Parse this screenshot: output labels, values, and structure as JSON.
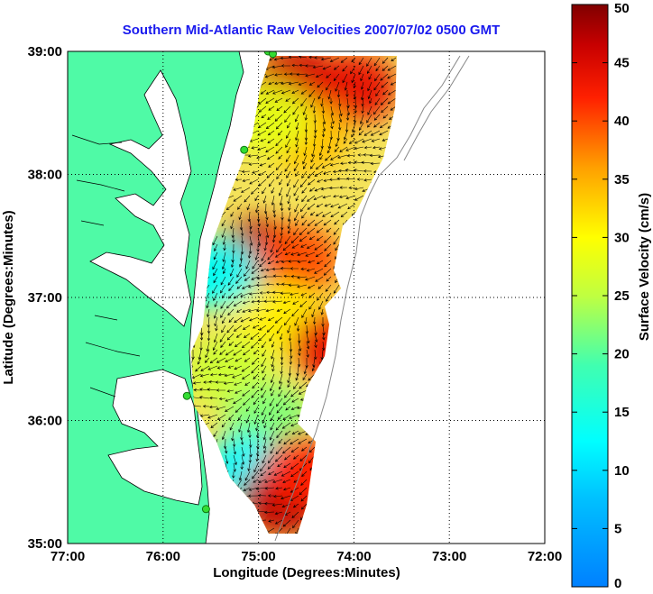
{
  "chart_data": {
    "type": "heatmap",
    "title": "Southern Mid-Atlantic Raw Velocities 2007/07/02 0500 GMT",
    "xlabel": "Longitude (Degrees:Minutes)",
    "ylabel": "Latitude (Degrees:Minutes)",
    "xlim": [
      -77,
      -72
    ],
    "ylim": [
      35,
      39
    ],
    "x_ticks": [
      {
        "value": -77,
        "label": "77:00"
      },
      {
        "value": -76,
        "label": "76:00"
      },
      {
        "value": -75,
        "label": "75:00"
      },
      {
        "value": -74,
        "label": "74:00"
      },
      {
        "value": -73,
        "label": "73:00"
      },
      {
        "value": -72,
        "label": "72:00"
      }
    ],
    "y_ticks": [
      {
        "value": 39,
        "label": "39:00"
      },
      {
        "value": 38,
        "label": "38:00"
      },
      {
        "value": 37,
        "label": "37:00"
      },
      {
        "value": 36,
        "label": "36:00"
      },
      {
        "value": 35,
        "label": "35:00"
      }
    ],
    "grid": true,
    "colorbar": {
      "label": "Surface Velocity (cm/s)",
      "range": [
        0,
        50
      ],
      "ticks": [
        {
          "value": 50,
          "label": "50"
        },
        {
          "value": 45,
          "label": "45"
        },
        {
          "value": 40,
          "label": "40"
        },
        {
          "value": 35,
          "label": "35"
        },
        {
          "value": 30,
          "label": "30"
        },
        {
          "value": 25,
          "label": "25"
        },
        {
          "value": 20,
          "label": "20"
        },
        {
          "value": 15,
          "label": "15"
        },
        {
          "value": 10,
          "label": "10"
        },
        {
          "value": 5,
          "label": "5"
        },
        {
          "value": 0,
          "label": "0"
        }
      ],
      "colormap": "jet"
    },
    "speed_regions": [
      {
        "lon": -74.6,
        "lat": 38.75,
        "speed": 46
      },
      {
        "lon": -74.0,
        "lat": 38.7,
        "speed": 44
      },
      {
        "lon": -74.5,
        "lat": 38.3,
        "speed": 34
      },
      {
        "lon": -74.9,
        "lat": 38.45,
        "speed": 28
      },
      {
        "lon": -75.0,
        "lat": 37.35,
        "speed": 48
      },
      {
        "lon": -74.6,
        "lat": 37.3,
        "speed": 40
      },
      {
        "lon": -74.8,
        "lat": 36.85,
        "speed": 31
      },
      {
        "lon": -74.2,
        "lat": 36.6,
        "speed": 44
      },
      {
        "lon": -75.3,
        "lat": 36.4,
        "speed": 26
      },
      {
        "lon": -74.9,
        "lat": 36.0,
        "speed": 22
      },
      {
        "lon": -75.1,
        "lat": 35.6,
        "speed": 12
      },
      {
        "lon": -74.75,
        "lat": 35.35,
        "speed": 47
      },
      {
        "lon": -74.5,
        "lat": 35.6,
        "speed": 42
      },
      {
        "lon": -75.45,
        "lat": 37.2,
        "speed": 13
      }
    ],
    "site_markers": [
      {
        "lon": -74.9,
        "lat": 39.0
      },
      {
        "lon": -74.85,
        "lat": 38.98
      },
      {
        "lon": -75.15,
        "lat": 38.2
      },
      {
        "lon": -75.75,
        "lat": 36.2
      },
      {
        "lon": -75.55,
        "lat": 35.28
      }
    ],
    "colors": {
      "land": "#4ffaa6",
      "water": "#ffffff",
      "title": "#1a1aee",
      "marker": "#33dd33"
    }
  }
}
